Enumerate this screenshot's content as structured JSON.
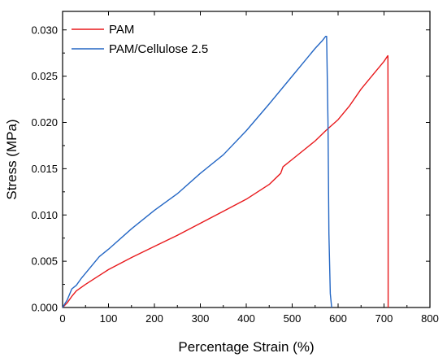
{
  "chart_data": {
    "type": "line",
    "title": "",
    "xlabel": "Percentage Strain (%)",
    "ylabel": "Stress (MPa)",
    "xlim": [
      0,
      800
    ],
    "ylim": [
      0,
      0.032
    ],
    "xticks": [
      "0",
      "100",
      "200",
      "300",
      "400",
      "500",
      "600",
      "700",
      "800"
    ],
    "yticks": [
      "0.000",
      "0.005",
      "0.010",
      "0.015",
      "0.020",
      "0.025",
      "0.030"
    ],
    "xtick_values": [
      0,
      100,
      200,
      300,
      400,
      500,
      600,
      700,
      800
    ],
    "ytick_values": [
      0,
      0.005,
      0.01,
      0.015,
      0.02,
      0.025,
      0.03
    ],
    "grid": false,
    "legend_position": "top-left",
    "series": [
      {
        "name": "PAM",
        "color": "#e8191c",
        "x": [
          0,
          10,
          20,
          30,
          50,
          75,
          100,
          150,
          200,
          250,
          300,
          350,
          400,
          450,
          475,
          480,
          500,
          550,
          575,
          600,
          625,
          650,
          675,
          700,
          708,
          708.5,
          709,
          709,
          709
        ],
        "y": [
          0,
          0.0005,
          0.0012,
          0.0018,
          0.0025,
          0.0033,
          0.0041,
          0.0054,
          0.0066,
          0.0078,
          0.0091,
          0.0104,
          0.0117,
          0.0133,
          0.0145,
          0.0152,
          0.016,
          0.018,
          0.0192,
          0.0203,
          0.0218,
          0.0236,
          0.0251,
          0.0266,
          0.0272,
          0.0272,
          0.015,
          0.005,
          0
        ]
      },
      {
        "name": "PAM/Cellulose 2.5",
        "color": "#2366c4",
        "x": [
          0,
          10,
          20,
          25,
          30,
          40,
          60,
          80,
          100,
          150,
          200,
          250,
          300,
          350,
          400,
          450,
          500,
          525,
          550,
          565,
          573,
          575,
          578,
          580,
          583,
          586
        ],
        "y": [
          0,
          0.0008,
          0.002,
          0.0022,
          0.0024,
          0.0031,
          0.0043,
          0.0055,
          0.0063,
          0.0085,
          0.0105,
          0.0123,
          0.0145,
          0.0165,
          0.0191,
          0.022,
          0.025,
          0.0265,
          0.028,
          0.0288,
          0.0293,
          0.0293,
          0.02,
          0.008,
          0.0015,
          0
        ]
      }
    ]
  }
}
